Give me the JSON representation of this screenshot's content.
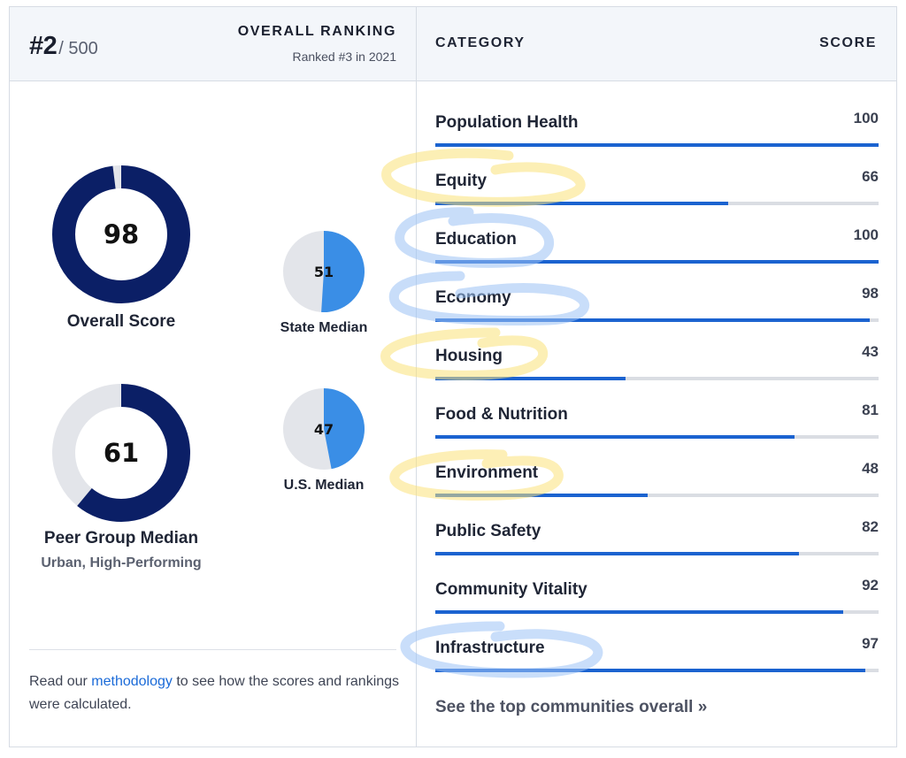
{
  "ranking": {
    "rank": "#2",
    "total": "/ 500",
    "label": "OVERALL RANKING",
    "previous": "Ranked #3 in 2021"
  },
  "columns": {
    "category": "CATEGORY",
    "score": "SCORE"
  },
  "scores": {
    "overall": {
      "value": "98",
      "fraction": 0.98,
      "label": "Overall Score"
    },
    "state": {
      "value": "51",
      "fraction": 0.51,
      "label": "State Median"
    },
    "peer": {
      "value": "61",
      "fraction": 0.61,
      "label": "Peer Group Median",
      "sublabel": "Urban, High-Performing"
    },
    "us": {
      "value": "47",
      "fraction": 0.47,
      "label": "U.S. Median"
    }
  },
  "methodology": {
    "before": "Read our ",
    "link": "methodology",
    "after": " to see how the scores and rankings were calculated."
  },
  "categories": [
    {
      "name": "Population Health",
      "score": "100",
      "fraction": 1.0
    },
    {
      "name": "Equity",
      "score": "66",
      "fraction": 0.66
    },
    {
      "name": "Education",
      "score": "100",
      "fraction": 1.0
    },
    {
      "name": "Economy",
      "score": "98",
      "fraction": 0.98
    },
    {
      "name": "Housing",
      "score": "43",
      "fraction": 0.43
    },
    {
      "name": "Food & Nutrition",
      "score": "81",
      "fraction": 0.81
    },
    {
      "name": "Environment",
      "score": "48",
      "fraction": 0.48
    },
    {
      "name": "Public Safety",
      "score": "82",
      "fraction": 0.82
    },
    {
      "name": "Community Vitality",
      "score": "92",
      "fraction": 0.92
    },
    {
      "name": "Infrastructure",
      "score": "97",
      "fraction": 0.97
    }
  ],
  "see_top": "See the top communities overall »",
  "colors": {
    "donut_fill": "#0b1f66",
    "donut_track": "#e3e5ea",
    "pie_fill": "#3a8ee6",
    "pie_track": "#e3e5ea",
    "bar_fill": "#1b63d0",
    "bar_track": "#dadde3",
    "highlight_yellow": "#fbe27a",
    "highlight_blue": "#9cc3f5"
  }
}
